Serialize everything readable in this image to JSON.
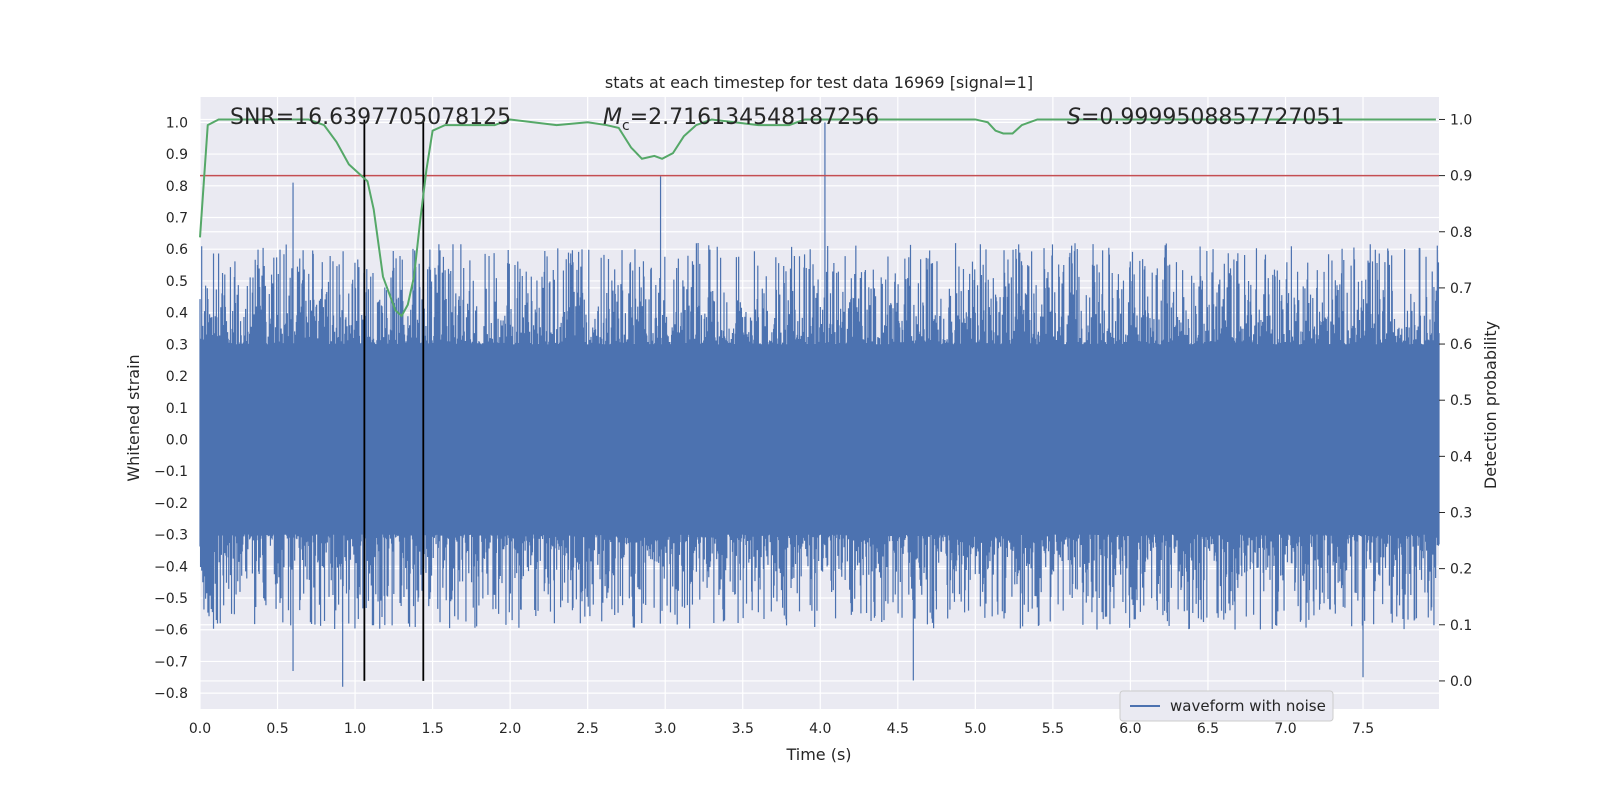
{
  "chart_data": {
    "type": "line",
    "title": "stats at each timestep for test data 16969 [signal=1]",
    "xlabel": "Time (s)",
    "ylabel": "Whitened strain",
    "y2label": "Detection probability",
    "xlim": [
      0.0,
      7.99
    ],
    "ylim": [
      -0.85,
      1.08
    ],
    "y2lim": [
      -0.05,
      1.04
    ],
    "xticks": [
      0.0,
      0.5,
      1.0,
      1.5,
      2.0,
      2.5,
      3.0,
      3.5,
      4.0,
      4.5,
      5.0,
      5.5,
      6.0,
      6.5,
      7.0,
      7.5
    ],
    "xtick_labels": [
      "0.0",
      "0.5",
      "1.0",
      "1.5",
      "2.0",
      "2.5",
      "3.0",
      "3.5",
      "4.0",
      "4.5",
      "5.0",
      "5.5",
      "6.0",
      "6.5",
      "7.0",
      "7.5"
    ],
    "yticks": [
      -0.8,
      -0.7,
      -0.6,
      -0.5,
      -0.4,
      -0.3,
      -0.2,
      -0.1,
      0.0,
      0.1,
      0.2,
      0.3,
      0.4,
      0.5,
      0.6,
      0.7,
      0.8,
      0.9,
      1.0
    ],
    "ytick_labels": [
      "−0.8",
      "−0.7",
      "−0.6",
      "−0.5",
      "−0.4",
      "−0.3",
      "−0.2",
      "−0.1",
      "0.0",
      "0.1",
      "0.2",
      "0.3",
      "0.4",
      "0.5",
      "0.6",
      "0.7",
      "0.8",
      "0.9",
      "1.0"
    ],
    "y2ticks": [
      0.0,
      0.1,
      0.2,
      0.3,
      0.4,
      0.5,
      0.6,
      0.7,
      0.8,
      0.9,
      1.0
    ],
    "y2tick_labels": [
      "0.0",
      "0.1",
      "0.2",
      "0.3",
      "0.4",
      "0.5",
      "0.6",
      "0.7",
      "0.8",
      "0.9",
      "1.0"
    ],
    "grid": true,
    "legend_position": "lower-right",
    "annotations": {
      "snr": "SNR=16.6397705078125",
      "mc_symbol": "M",
      "mc_sub": "c",
      "mc_value": "=2.716134548187256",
      "s_symbol": "S",
      "s_value": "=0.9999508857727051"
    },
    "series": [
      {
        "name": "waveform with noise",
        "color": "#4c72b0",
        "role": "strain",
        "envelope_typical": [
          -0.3,
          0.3
        ],
        "envelope_peak": [
          -0.78,
          1.0
        ],
        "notable_peaks": [
          {
            "x": 0.6,
            "y": 0.81
          },
          {
            "x": 0.6,
            "y": -0.73
          },
          {
            "x": 0.92,
            "y": -0.78
          },
          {
            "x": 2.97,
            "y": 0.83
          },
          {
            "x": 4.03,
            "y": 1.0
          },
          {
            "x": 4.6,
            "y": -0.76
          },
          {
            "x": 7.5,
            "y": -0.75
          }
        ]
      },
      {
        "role": "detection_probability",
        "color": "#55a868",
        "x": [
          0.0,
          0.05,
          0.12,
          0.2,
          0.7,
          0.8,
          0.88,
          0.96,
          1.04,
          1.08,
          1.12,
          1.18,
          1.22,
          1.26,
          1.3,
          1.34,
          1.38,
          1.42,
          1.46,
          1.5,
          1.58,
          1.66,
          1.74,
          1.82,
          1.9,
          2.0,
          2.3,
          2.5,
          2.62,
          2.7,
          2.78,
          2.85,
          2.93,
          2.98,
          3.05,
          3.12,
          3.2,
          3.3,
          3.6,
          3.8,
          3.9,
          4.0,
          5.0,
          5.08,
          5.13,
          5.18,
          5.24,
          5.3,
          5.4,
          5.5,
          5.6,
          7.97
        ],
        "y": [
          0.79,
          0.99,
          1.0,
          1.0,
          1.0,
          0.99,
          0.96,
          0.92,
          0.9,
          0.89,
          0.84,
          0.72,
          0.69,
          0.66,
          0.65,
          0.67,
          0.72,
          0.82,
          0.91,
          0.98,
          0.99,
          0.99,
          0.99,
          0.99,
          0.99,
          1.0,
          0.99,
          0.995,
          0.99,
          0.985,
          0.95,
          0.93,
          0.935,
          0.93,
          0.94,
          0.97,
          0.99,
          1.0,
          0.99,
          0.99,
          1.0,
          1.0,
          1.0,
          0.995,
          0.98,
          0.975,
          0.975,
          0.99,
          1.0,
          1.0,
          1.0,
          1.0
        ]
      },
      {
        "role": "threshold",
        "color": "#c44e52",
        "y": 0.9
      },
      {
        "role": "event_markers",
        "color": "#000000",
        "x": [
          1.06,
          1.44
        ],
        "y2_range": [
          0.0,
          1.0
        ]
      }
    ]
  }
}
